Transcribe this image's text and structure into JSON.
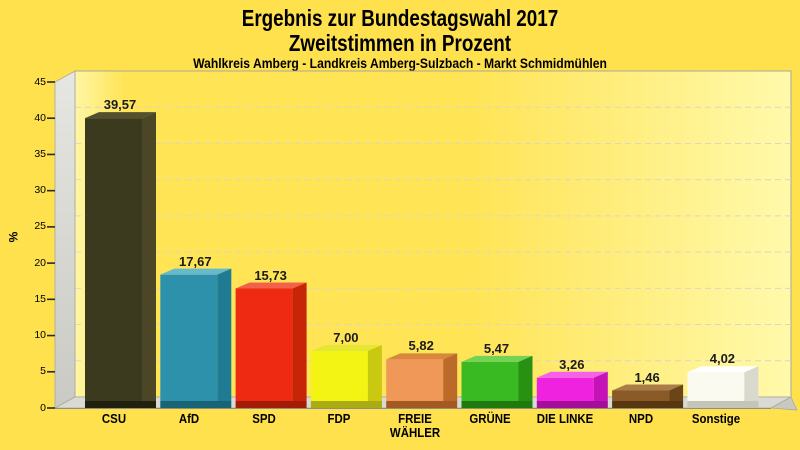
{
  "header": {
    "title_line1": "Ergebnis zur Bundestagswahl 2017",
    "title_line2": "Zweitstimmen in Prozent",
    "subtitle": "Wahlkreis Amberg - Landkreis Amberg-Sulzbach - Markt Schmidmühlen"
  },
  "chart_data": {
    "type": "bar",
    "title": "Ergebnis zur Bundestagswahl 2017 – Zweitstimmen in Prozent",
    "subtitle": "Wahlkreis Amberg - Landkreis Amberg-Sulzbach - Markt Schmidmühlen",
    "style": "3d-bars, yellow gradient background, dashed horizontal gridlines, gray left wall and floor",
    "xlabel": "",
    "ylabel": "%",
    "ylim": [
      0,
      45
    ],
    "ytick_interval": 5,
    "yticks": [
      0,
      5,
      10,
      15,
      20,
      25,
      30,
      35,
      40,
      45
    ],
    "ytick_labels": [
      "0",
      "5",
      "10",
      "15",
      "20",
      "25",
      "30",
      "35",
      "40",
      "45"
    ],
    "grid": "horizontal dashed",
    "legend": "none",
    "categories": [
      "CSU",
      "AfD",
      "SPD",
      "FDP",
      "FREIE WÄHLER",
      "GRÜNE",
      "DIE LINKE",
      "NPD",
      "Sonstige"
    ],
    "category_lines": [
      [
        "CSU"
      ],
      [
        "AfD"
      ],
      [
        "SPD"
      ],
      [
        "FDP"
      ],
      [
        "FREIE",
        "WÄHLER"
      ],
      [
        "GRÜNE"
      ],
      [
        "DIE LINKE"
      ],
      [
        "NPD"
      ],
      [
        "Sonstige"
      ]
    ],
    "values": [
      39.57,
      17.67,
      15.73,
      7.0,
      5.82,
      5.47,
      3.26,
      1.46,
      4.02
    ],
    "value_labels": [
      "39,57",
      "17,67",
      "15,73",
      "7,00",
      "5,82",
      "5,47",
      "3,26",
      "1,46",
      "4,02"
    ],
    "colors": {
      "background": "#FFE14E",
      "plot_gradient_left": "#FFF6A4",
      "plot_gradient_mid": "#FFE455",
      "plot_gradient_right": "#FFF9AB",
      "wall_top": "#E6E6E2",
      "wall_bottom": "#CACAC4",
      "floor": "#DADAD4",
      "corner": "#C9C9C0",
      "frame": "#A8A89E",
      "grid": "#DBD6C6",
      "tick": "#2A2A2A",
      "text": "#000000",
      "bars": [
        {
          "name": "CSU",
          "front": "#3C3A1E",
          "top": "#54502D",
          "side": "#4B4726",
          "shadow": "#21200F"
        },
        {
          "name": "AfD",
          "front": "#2E91AC",
          "top": "#66BACB",
          "side": "#1F7A93",
          "shadow": "#186476"
        },
        {
          "name": "SPD",
          "front": "#EE2B12",
          "top": "#F3614B",
          "side": "#C62508",
          "shadow": "#A31C05"
        },
        {
          "name": "FDP",
          "front": "#F4F414",
          "top": "#E6E635",
          "side": "#C9C912",
          "shadow": "#ABAB14"
        },
        {
          "name": "FREIE WÄHLER",
          "front": "#EF9858",
          "top": "#D8873E",
          "side": "#BC6A2A",
          "shadow": "#A35A22"
        },
        {
          "name": "GRÜNE",
          "front": "#39B922",
          "top": "#74D254",
          "side": "#289114",
          "shadow": "#1F7A0E"
        },
        {
          "name": "DIE LINKE",
          "front": "#EE22DF",
          "top": "#F562EA",
          "side": "#C513B8",
          "shadow": "#A50D9B"
        },
        {
          "name": "NPD",
          "front": "#8A5B27",
          "top": "#AA7D48",
          "side": "#6B4417",
          "shadow": "#573610"
        },
        {
          "name": "Sonstige",
          "front": "#FAFAF0",
          "top": "#FFFFFE",
          "side": "#D9D9CE",
          "shadow": "#C4C4B8"
        }
      ]
    }
  }
}
